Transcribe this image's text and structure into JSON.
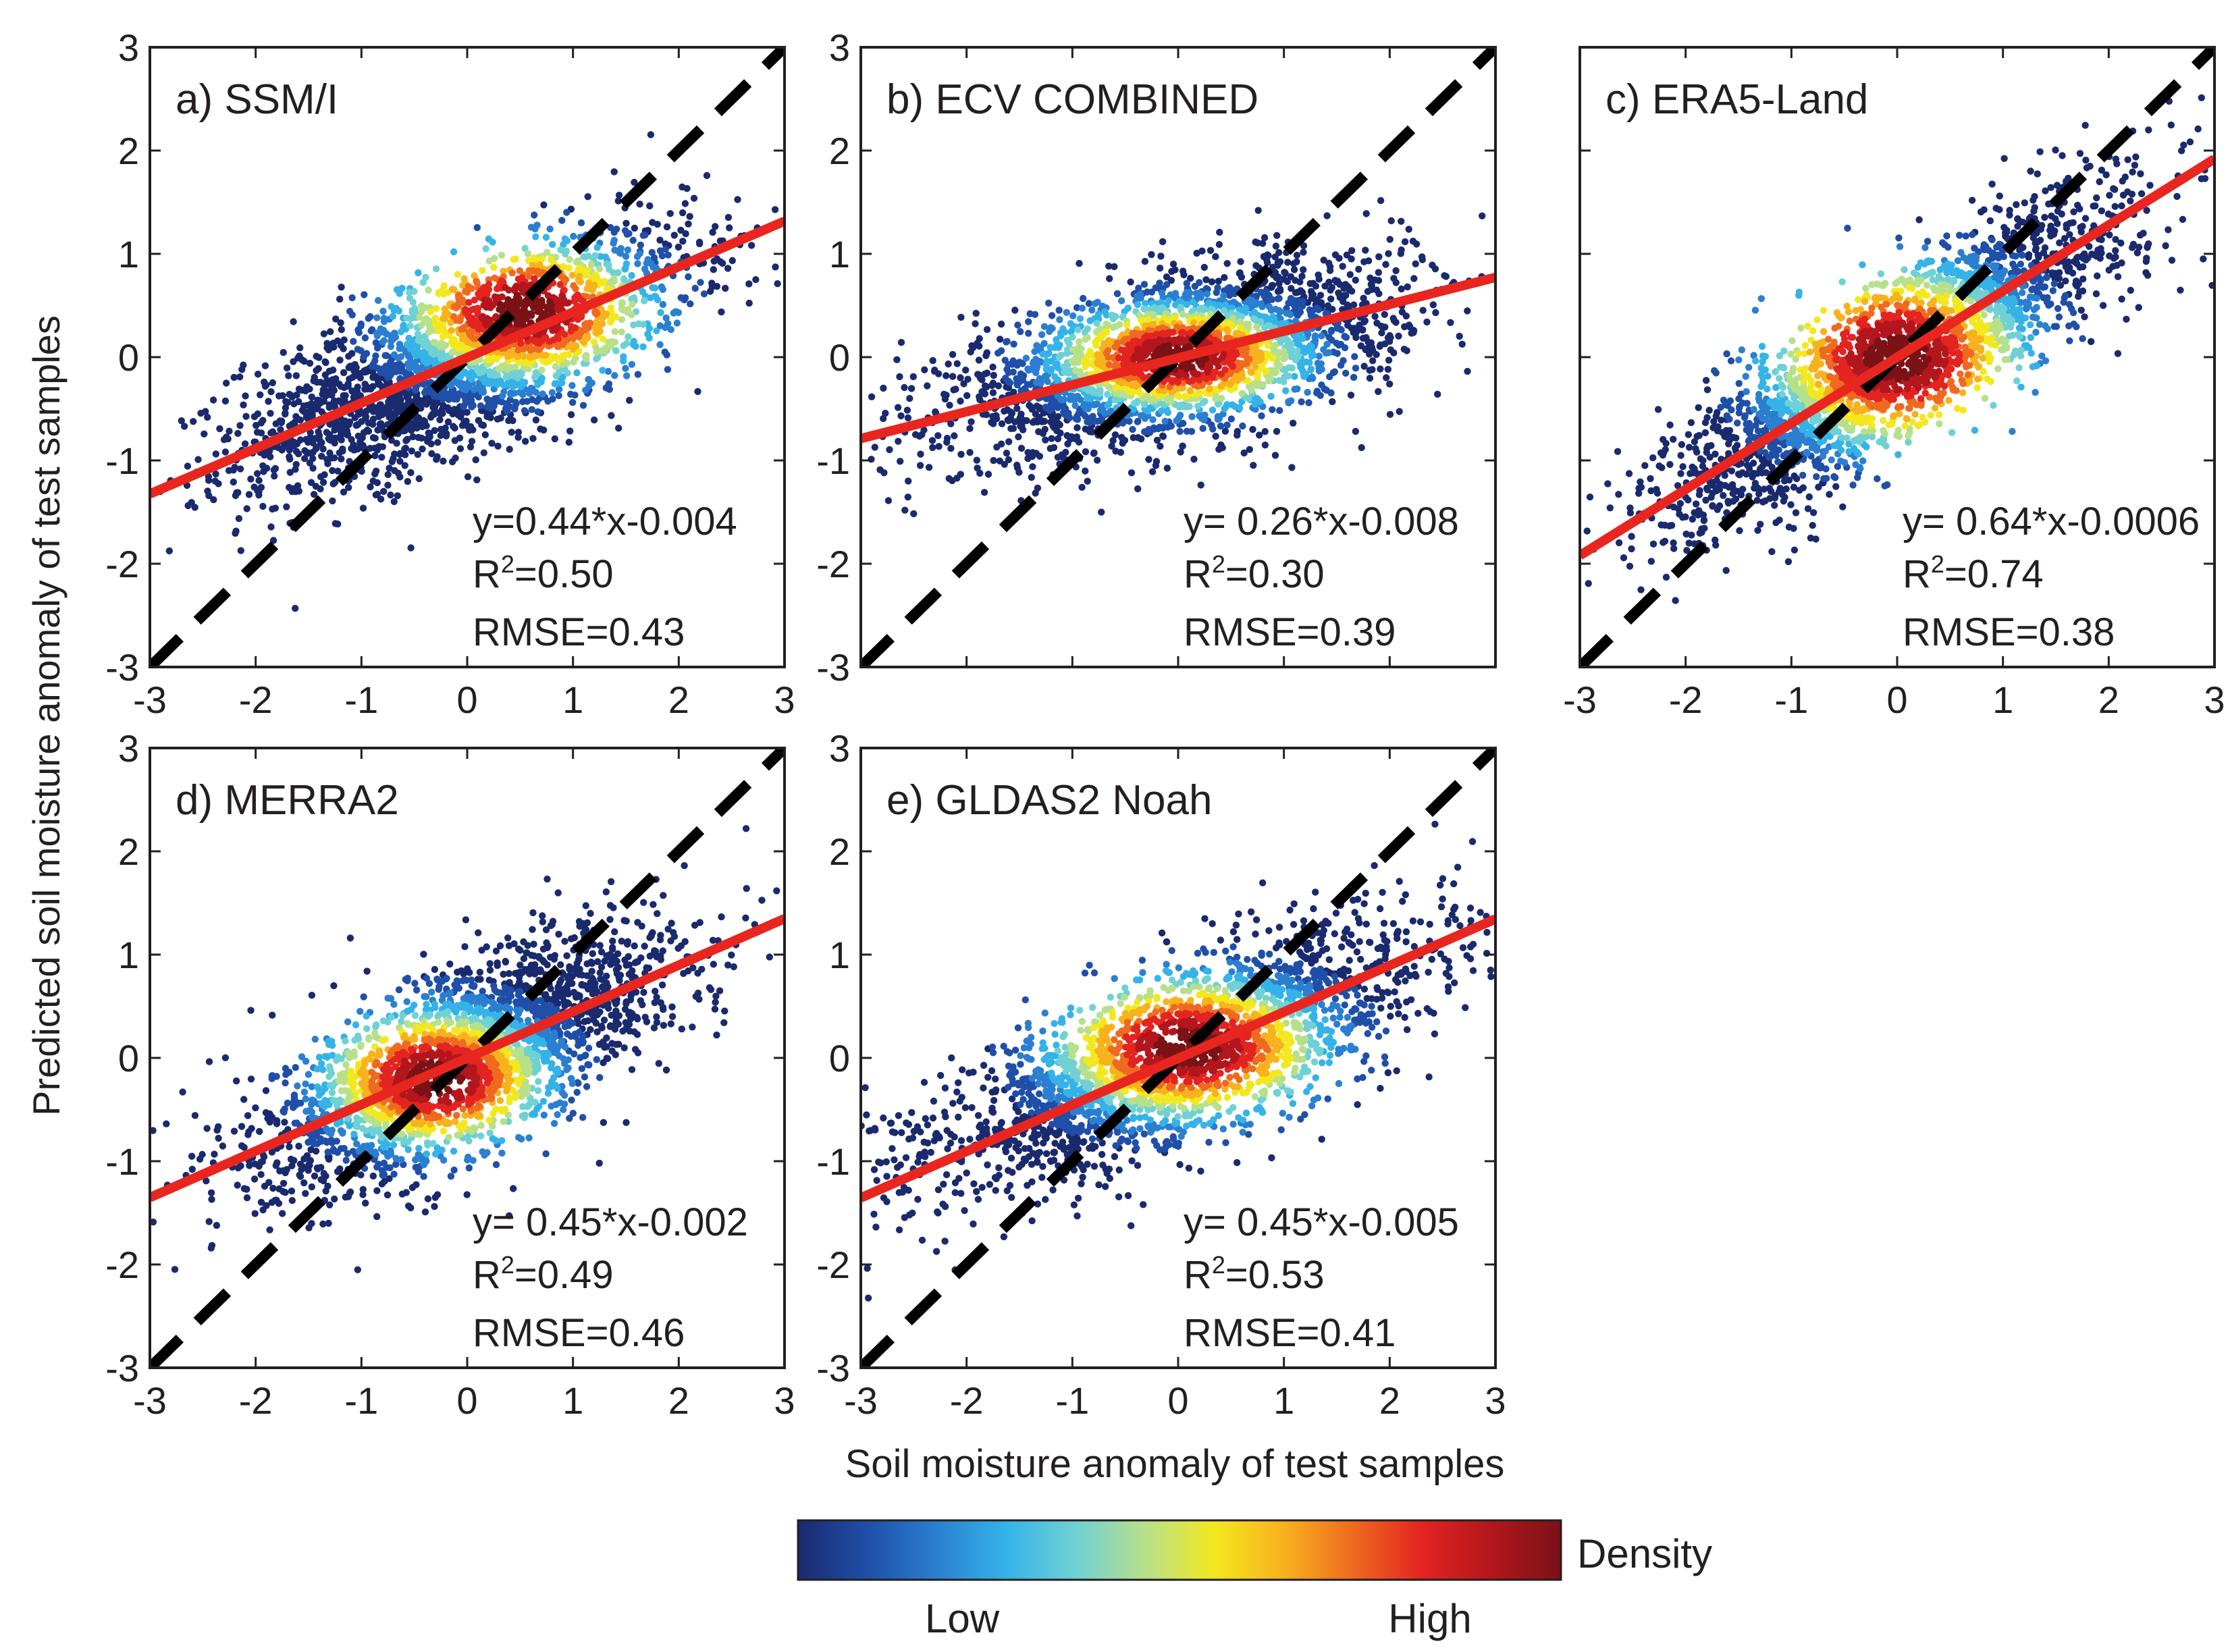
{
  "figure": {
    "ylabel": "Predicted soil moisture anomaly of test samples",
    "xlabel": "Soil moisture anomaly of test samples"
  },
  "colorbar": {
    "label": "Density",
    "low_label": "Low",
    "high_label": "High",
    "colors": [
      "#1a2a6e",
      "#1f4fa8",
      "#2b7fd0",
      "#35b3e8",
      "#6fd1d4",
      "#b7e08a",
      "#f3e81f",
      "#f7b21d",
      "#ef6a1f",
      "#e32420",
      "#b3161c",
      "#7a1216"
    ]
  },
  "chart_data": [
    {
      "type": "scatter",
      "title": "a) SSM/I",
      "xlim": [
        -3,
        3
      ],
      "ylim": [
        -3,
        3
      ],
      "xticks": [
        "-3",
        "-2",
        "-1",
        "0",
        "1",
        "2",
        "3"
      ],
      "yticks": [
        "3",
        "2",
        "1",
        "0",
        "-1",
        "-2",
        "-3"
      ],
      "fit": {
        "slope": 0.44,
        "intercept": -0.004
      },
      "stats": {
        "equation": "y=0.44*x-0.004",
        "r2_label": "R",
        "r2_sup": "2",
        "r2_value": "=0.50",
        "rmse": "RMSE=0.43"
      },
      "cloud": {
        "center": [
          0.0,
          0.0
        ],
        "spread_x": 1.05,
        "spread_y": 0.6,
        "corr": 0.71,
        "hot": [
          0.55,
          0.45
        ]
      }
    },
    {
      "type": "scatter",
      "title": "b) ECV COMBINED",
      "xlim": [
        -3,
        3
      ],
      "ylim": [
        -3,
        3
      ],
      "yticks": [
        "3",
        "2",
        "1",
        "0",
        "-1",
        "-2",
        "-3"
      ],
      "fit": {
        "slope": 0.26,
        "intercept": -0.008
      },
      "stats": {
        "equation": "y= 0.26*x-0.008",
        "r2_label": "R",
        "r2_sup": "2",
        "r2_value": "=0.30",
        "rmse": "RMSE=0.39"
      },
      "cloud": {
        "center": [
          0.0,
          0.0
        ],
        "spread_x": 1.05,
        "spread_y": 0.45,
        "corr": 0.55,
        "hot": [
          0.0,
          0.0
        ]
      }
    },
    {
      "type": "scatter",
      "title": "c) ERA5-Land",
      "xlim": [
        -3,
        3
      ],
      "ylim": [
        -3,
        3
      ],
      "xticks": [
        "-3",
        "-2",
        "-1",
        "0",
        "1",
        "2",
        "3"
      ],
      "fit": {
        "slope": 0.64,
        "intercept": -0.0006
      },
      "stats": {
        "equation": "y= 0.64*x-0.0006",
        "r2_label": "R",
        "r2_sup": "2",
        "r2_value": "=0.74",
        "rmse": "RMSE=0.38"
      },
      "cloud": {
        "center": [
          0.0,
          0.0
        ],
        "spread_x": 1.1,
        "spread_y": 0.8,
        "corr": 0.86,
        "hot": [
          0.0,
          0.0
        ]
      }
    },
    {
      "type": "scatter",
      "title": "d) MERRA2",
      "xlim": [
        -3,
        3
      ],
      "ylim": [
        -3,
        3
      ],
      "xticks": [
        "-3",
        "-2",
        "-1",
        "0",
        "1",
        "2",
        "3"
      ],
      "yticks": [
        "3",
        "2",
        "1",
        "0",
        "-1",
        "-2",
        "-3"
      ],
      "fit": {
        "slope": 0.45,
        "intercept": -0.002
      },
      "stats": {
        "equation": "y= 0.45*x-0.002",
        "r2_label": "R",
        "r2_sup": "2",
        "r2_value": "=0.49",
        "rmse": "RMSE=0.46"
      },
      "cloud": {
        "center": [
          0.0,
          0.0
        ],
        "spread_x": 0.95,
        "spread_y": 0.6,
        "corr": 0.7,
        "hot": [
          -0.3,
          -0.2
        ]
      }
    },
    {
      "type": "scatter",
      "title": "e) GLDAS2 Noah",
      "xlim": [
        -3,
        3
      ],
      "ylim": [
        -3,
        3
      ],
      "xticks": [
        "-3",
        "-2",
        "-1",
        "0",
        "1",
        "2",
        "3"
      ],
      "yticks": [
        "3",
        "2",
        "1",
        "0",
        "-1",
        "-2",
        "-3"
      ],
      "fit": {
        "slope": 0.45,
        "intercept": -0.005
      },
      "stats": {
        "equation": "y= 0.45*x-0.005",
        "r2_label": "R",
        "r2_sup": "2",
        "r2_value": "=0.53",
        "rmse": "RMSE=0.41"
      },
      "cloud": {
        "center": [
          0.0,
          0.0
        ],
        "spread_x": 1.15,
        "spread_y": 0.62,
        "corr": 0.73,
        "hot": [
          0.1,
          0.1
        ]
      }
    }
  ]
}
